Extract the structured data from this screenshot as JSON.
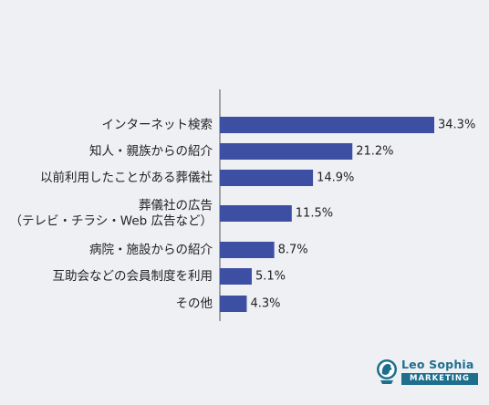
{
  "chart_data": {
    "type": "bar",
    "orientation": "horizontal",
    "categories": [
      [
        "インターネット検索"
      ],
      [
        "知人・親族からの紹介"
      ],
      [
        "以前利用したことがある葬儀社"
      ],
      [
        "葬儀社の広告",
        "（テレビ・チラシ・Web 広告など）"
      ],
      [
        "病院・施設からの紹介"
      ],
      [
        "互助会などの会員制度を利用"
      ],
      [
        "その他"
      ]
    ],
    "values": [
      34.3,
      21.2,
      14.9,
      11.5,
      8.7,
      5.1,
      4.3
    ],
    "value_labels": [
      "34.3%",
      "21.2%",
      "14.9%",
      "11.5%",
      "8.7%",
      "5.1%",
      "4.3%"
    ],
    "bar_color": "#3d4fa3",
    "grid": false,
    "legend": "none"
  },
  "logo": {
    "name": "Leo Sophia",
    "tag": "MARKETING",
    "color": "#1e6f8e"
  }
}
